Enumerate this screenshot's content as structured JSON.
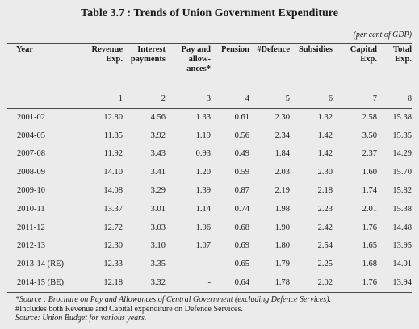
{
  "title": "Table 3.7 : Trends of Union Government Expenditure",
  "unit_note": "(per cent of GDP)",
  "columns": {
    "year": "Year",
    "revenue": [
      "Revenue",
      "Exp."
    ],
    "interest": [
      "Interest",
      "payments"
    ],
    "pay": [
      "Pay and",
      "allow-",
      "ances*"
    ],
    "pension": [
      "Pension"
    ],
    "defence": [
      "#Defence"
    ],
    "subsidies": [
      "Subsidies"
    ],
    "capital": [
      "Capital",
      "Exp."
    ],
    "total": [
      "Total",
      "Exp."
    ]
  },
  "column_numbers": [
    "1",
    "2",
    "3",
    "4",
    "5",
    "6",
    "7",
    "8"
  ],
  "rows": [
    {
      "year": "2001-02",
      "values": [
        "12.80",
        "4.56",
        "1.33",
        "0.61",
        "2.30",
        "1.32",
        "2.58",
        "15.38"
      ]
    },
    {
      "year": "2004-05",
      "values": [
        "11.85",
        "3.92",
        "1.19",
        "0.56",
        "2.34",
        "1.42",
        "3.50",
        "15.35"
      ]
    },
    {
      "year": "2007-08",
      "values": [
        "11.92",
        "3.43",
        "0.93",
        "0.49",
        "1.84",
        "1.42",
        "2.37",
        "14.29"
      ]
    },
    {
      "year": "2008-09",
      "values": [
        "14.10",
        "3.41",
        "1.20",
        "0.59",
        "2.03",
        "2.30",
        "1.60",
        "15.70"
      ]
    },
    {
      "year": "2009-10",
      "values": [
        "14.08",
        "3.29",
        "1.39",
        "0.87",
        "2.19",
        "2.18",
        "1.74",
        "15.82"
      ]
    },
    {
      "year": "2010-11",
      "values": [
        "13.37",
        "3.01",
        "1.14",
        "0.74",
        "1.98",
        "2.23",
        "2.01",
        "15.38"
      ]
    },
    {
      "year": "2011-12",
      "values": [
        "12.72",
        "3.03",
        "1.06",
        "0.68",
        "1.90",
        "2.42",
        "1.76",
        "14.48"
      ]
    },
    {
      "year": "2012-13",
      "values": [
        "12.30",
        "3.10",
        "1.07",
        "0.69",
        "1.80",
        "2.54",
        "1.65",
        "13.95"
      ]
    },
    {
      "year": "2013-14 (RE)",
      "values": [
        "12.33",
        "3.35",
        "-",
        "0.65",
        "1.79",
        "2.25",
        "1.68",
        "14.01"
      ]
    },
    {
      "year": "2014-15 (BE)",
      "values": [
        "12.18",
        "3.32",
        "-",
        "0.64",
        "1.78",
        "2.02",
        "1.76",
        "13.94"
      ]
    }
  ],
  "notes": [
    "*Source : Brochure on Pay and Allowances of Central Government (excluding Defence Services).",
    "#Includes both Revenue and Capital expenditure on Defence Services.",
    "Source: Union Budget for various years."
  ]
}
